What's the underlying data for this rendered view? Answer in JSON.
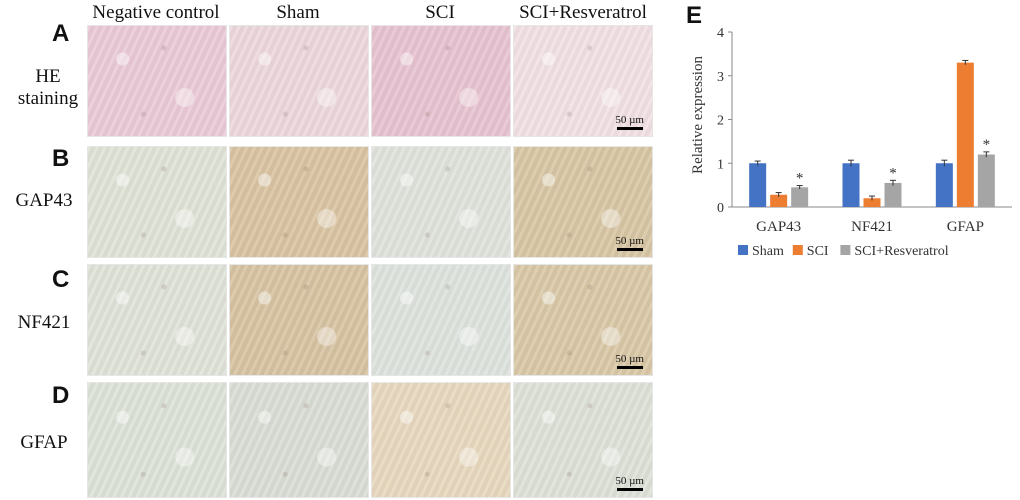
{
  "columns": [
    "Negative control",
    "Sham",
    "SCI",
    "SCI+Resveratrol"
  ],
  "rows": [
    {
      "letter": "A",
      "label_lines": [
        "HE",
        "staining"
      ]
    },
    {
      "letter": "B",
      "label_lines": [
        "GAP43"
      ]
    },
    {
      "letter": "C",
      "label_lines": [
        "NF421"
      ]
    },
    {
      "letter": "D",
      "label_lines": [
        "GFAP"
      ]
    }
  ],
  "scale_bar_label": "50 µm",
  "tissue_colors": {
    "A": [
      "#e9c9d6",
      "#ecd7dd",
      "#e7c3d0",
      "#f1e0e4"
    ],
    "B": [
      "#dfe2d6",
      "#d9c4a2",
      "#dfe3dc",
      "#d8c6a4"
    ],
    "C": [
      "#dfe2d8",
      "#d7c3a2",
      "#dee3de",
      "#d9c8a7"
    ],
    "D": [
      "#dde2d8",
      "#d9ddd4",
      "#e7d8be",
      "#dde1d7"
    ]
  },
  "chart_panel_letter": "E",
  "chart_data": {
    "type": "bar",
    "categories": [
      "GAP43",
      "NF421",
      "GFAP"
    ],
    "series": [
      {
        "name": "Sham",
        "color": "#4472c4",
        "values": [
          1.0,
          1.0,
          1.0
        ],
        "errors": [
          0.05,
          0.07,
          0.07
        ],
        "significant": [
          false,
          false,
          false
        ]
      },
      {
        "name": "SCI",
        "color": "#ed7d31",
        "values": [
          0.28,
          0.2,
          3.3
        ],
        "errors": [
          0.05,
          0.05,
          0.05
        ],
        "significant": [
          false,
          false,
          false
        ]
      },
      {
        "name": "SCI+Resveratrol",
        "color": "#a5a5a5",
        "values": [
          0.45,
          0.55,
          1.2
        ],
        "errors": [
          0.04,
          0.06,
          0.06
        ],
        "significant": [
          true,
          true,
          true
        ]
      }
    ],
    "significance_marker": "*",
    "ylabel": "Relative expression",
    "xlabel": "",
    "ylim": [
      0,
      4
    ],
    "yticks": [
      0,
      1,
      2,
      3,
      4
    ],
    "grid": false,
    "legend_position": "bottom"
  }
}
